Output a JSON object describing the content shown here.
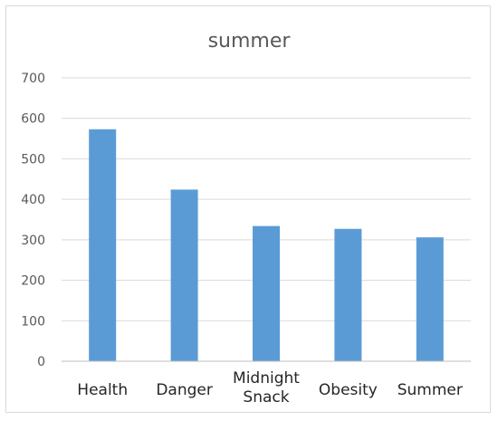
{
  "chart_data": {
    "type": "bar",
    "title": "summer",
    "categories": [
      "Health",
      "Danger",
      "Midnight Snack",
      "Obesity",
      "Summer"
    ],
    "category_lines": [
      [
        "Health"
      ],
      [
        "Danger"
      ],
      [
        "Midnight",
        "Snack"
      ],
      [
        "Obesity"
      ],
      [
        "Summer"
      ]
    ],
    "series": [
      {
        "values": [
          573,
          424,
          334,
          327,
          306
        ]
      }
    ],
    "ylim": [
      0,
      700
    ],
    "yticks": [
      "0",
      "100",
      "200",
      "300",
      "400",
      "500",
      "600",
      "700"
    ],
    "ytick_values": [
      0,
      100,
      200,
      300,
      400,
      500,
      600,
      700
    ],
    "grid": true,
    "legend": "none",
    "colors": {
      "bar": "#5b9bd5",
      "grid": "#d9d9d9",
      "axis": "#bfbfbf"
    }
  }
}
